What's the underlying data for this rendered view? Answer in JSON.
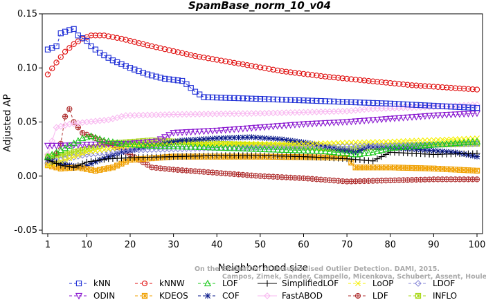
{
  "chart_data": {
    "type": "line",
    "title": "SpamBase_norm_10_v04",
    "xlabel": "Neighborhood size",
    "ylabel": "Adjusted AP",
    "xlim": [
      1,
      100
    ],
    "ylim": [
      -0.05,
      0.15
    ],
    "x_ticks": [
      1,
      10,
      20,
      30,
      40,
      50,
      60,
      70,
      80,
      90,
      100
    ],
    "y_ticks": [
      -0.05,
      0.0,
      0.05,
      0.1,
      0.15
    ],
    "x_tick_labels": [
      "1",
      "10",
      "20",
      "30",
      "40",
      "50",
      "60",
      "70",
      "80",
      "90",
      "100"
    ],
    "y_tick_labels": [
      "-0.05",
      "0.00",
      "0.05",
      "0.10",
      "0.15"
    ],
    "grid": false,
    "legend_position": "bottom",
    "watermark": [
      "Campos, Zimek, Sander, Campello, Micenkova, Schubert, Assent, Houle",
      "On the Evaluation of Unsupervised Outlier Detection. DAMI, 2015."
    ],
    "series": [
      {
        "name": "kNN",
        "color": "#1f2fd6",
        "marker": "square",
        "dash": "dash",
        "keypoints": [
          [
            1,
            0.117
          ],
          [
            3,
            0.12
          ],
          [
            4,
            0.132
          ],
          [
            6,
            0.135
          ],
          [
            7,
            0.136
          ],
          [
            8,
            0.13
          ],
          [
            10,
            0.125
          ],
          [
            11,
            0.12
          ],
          [
            13,
            0.114
          ],
          [
            16,
            0.107
          ],
          [
            20,
            0.1
          ],
          [
            24,
            0.094
          ],
          [
            28,
            0.09
          ],
          [
            32,
            0.088
          ],
          [
            33,
            0.085
          ],
          [
            35,
            0.078
          ],
          [
            37,
            0.073
          ],
          [
            45,
            0.072
          ],
          [
            60,
            0.07
          ],
          [
            80,
            0.067
          ],
          [
            100,
            0.063
          ]
        ]
      },
      {
        "name": "kNNW",
        "color": "#e01010",
        "marker": "circle",
        "dash": "dash",
        "keypoints": [
          [
            1,
            0.094
          ],
          [
            3,
            0.105
          ],
          [
            5,
            0.115
          ],
          [
            7,
            0.122
          ],
          [
            9,
            0.127
          ],
          [
            11,
            0.13
          ],
          [
            14,
            0.13
          ],
          [
            18,
            0.127
          ],
          [
            25,
            0.12
          ],
          [
            35,
            0.111
          ],
          [
            45,
            0.104
          ],
          [
            55,
            0.097
          ],
          [
            65,
            0.092
          ],
          [
            75,
            0.088
          ],
          [
            85,
            0.084
          ],
          [
            100,
            0.08
          ]
        ]
      },
      {
        "name": "LOF",
        "color": "#19c819",
        "marker": "triangle-up",
        "dash": "dash",
        "keypoints": [
          [
            1,
            0.018
          ],
          [
            3,
            0.022
          ],
          [
            6,
            0.028
          ],
          [
            9,
            0.035
          ],
          [
            11,
            0.037
          ],
          [
            14,
            0.033
          ],
          [
            18,
            0.03
          ],
          [
            25,
            0.028
          ],
          [
            35,
            0.027
          ],
          [
            50,
            0.025
          ],
          [
            65,
            0.023
          ],
          [
            72,
            0.02
          ],
          [
            76,
            0.022
          ],
          [
            80,
            0.026
          ],
          [
            100,
            0.032
          ]
        ]
      },
      {
        "name": "SimplifiedLOF",
        "color": "#000000",
        "marker": "plus",
        "dash": "solid",
        "keypoints": [
          [
            1,
            0.015
          ],
          [
            4,
            0.01
          ],
          [
            7,
            0.008
          ],
          [
            10,
            0.013
          ],
          [
            15,
            0.016
          ],
          [
            20,
            0.017
          ],
          [
            30,
            0.018
          ],
          [
            40,
            0.019
          ],
          [
            50,
            0.019
          ],
          [
            60,
            0.018
          ],
          [
            70,
            0.016
          ],
          [
            76,
            0.014
          ],
          [
            78,
            0.018
          ],
          [
            80,
            0.022
          ],
          [
            90,
            0.02
          ],
          [
            100,
            0.021
          ]
        ]
      },
      {
        "name": "LoOP",
        "color": "#f5f000",
        "marker": "x",
        "dash": "dash",
        "keypoints": [
          [
            1,
            0.01
          ],
          [
            5,
            0.015
          ],
          [
            10,
            0.022
          ],
          [
            20,
            0.028
          ],
          [
            40,
            0.03
          ],
          [
            60,
            0.03
          ],
          [
            80,
            0.032
          ],
          [
            100,
            0.035
          ]
        ]
      },
      {
        "name": "LDOF",
        "color": "#8a8ad8",
        "marker": "diamond",
        "dash": "dash",
        "keypoints": [
          [
            1,
            0.012
          ],
          [
            5,
            0.016
          ],
          [
            10,
            0.02
          ],
          [
            20,
            0.024
          ],
          [
            40,
            0.026
          ],
          [
            60,
            0.027
          ],
          [
            80,
            0.028
          ],
          [
            100,
            0.03
          ]
        ]
      },
      {
        "name": "ODIN",
        "color": "#8a18d0",
        "marker": "triangle-down",
        "dash": "dash",
        "keypoints": [
          [
            3,
            0.028
          ],
          [
            10,
            0.029
          ],
          [
            20,
            0.03
          ],
          [
            26,
            0.032
          ],
          [
            28,
            0.036
          ],
          [
            30,
            0.04
          ],
          [
            40,
            0.042
          ],
          [
            50,
            0.045
          ],
          [
            60,
            0.048
          ],
          [
            70,
            0.05
          ],
          [
            80,
            0.053
          ],
          [
            90,
            0.056
          ],
          [
            100,
            0.058
          ]
        ]
      },
      {
        "name": "KDEOS",
        "color": "#f0a000",
        "marker": "asterisk-box",
        "dash": "dash",
        "keypoints": [
          [
            1,
            0.01
          ],
          [
            4,
            0.007
          ],
          [
            8,
            0.008
          ],
          [
            12,
            0.005
          ],
          [
            16,
            0.008
          ],
          [
            20,
            0.015
          ],
          [
            30,
            0.018
          ],
          [
            50,
            0.018
          ],
          [
            70,
            0.017
          ],
          [
            72,
            0.008
          ],
          [
            80,
            0.008
          ],
          [
            90,
            0.007
          ],
          [
            100,
            0.005
          ]
        ]
      },
      {
        "name": "COF",
        "color": "#0a1a8a",
        "marker": "star",
        "dash": "dash",
        "keypoints": [
          [
            1,
            0.015
          ],
          [
            6,
            0.01
          ],
          [
            9,
            0.008
          ],
          [
            13,
            0.015
          ],
          [
            18,
            0.022
          ],
          [
            25,
            0.028
          ],
          [
            32,
            0.033
          ],
          [
            40,
            0.035
          ],
          [
            48,
            0.036
          ],
          [
            55,
            0.034
          ],
          [
            62,
            0.03
          ],
          [
            68,
            0.025
          ],
          [
            72,
            0.022
          ],
          [
            75,
            0.027
          ],
          [
            85,
            0.025
          ],
          [
            95,
            0.022
          ],
          [
            100,
            0.018
          ]
        ]
      },
      {
        "name": "FastABOD",
        "color": "#f8b8f0",
        "marker": "diamond",
        "dash": "solid",
        "keypoints": [
          [
            1,
            0.02
          ],
          [
            3,
            0.045
          ],
          [
            6,
            0.048
          ],
          [
            10,
            0.05
          ],
          [
            15,
            0.052
          ],
          [
            19,
            0.056
          ],
          [
            30,
            0.057
          ],
          [
            50,
            0.058
          ],
          [
            70,
            0.06
          ],
          [
            75,
            0.062
          ],
          [
            90,
            0.064
          ],
          [
            100,
            0.066
          ]
        ]
      },
      {
        "name": "LDF",
        "color": "#b03030",
        "marker": "circle-plus",
        "dash": "dash",
        "keypoints": [
          [
            2,
            0.012
          ],
          [
            4,
            0.03
          ],
          [
            5,
            0.055
          ],
          [
            6,
            0.062
          ],
          [
            7,
            0.05
          ],
          [
            9,
            0.04
          ],
          [
            12,
            0.035
          ],
          [
            15,
            0.03
          ],
          [
            18,
            0.025
          ],
          [
            22,
            0.015
          ],
          [
            25,
            0.008
          ],
          [
            30,
            0.006
          ],
          [
            40,
            0.003
          ],
          [
            50,
            0.0
          ],
          [
            60,
            -0.002
          ],
          [
            70,
            -0.005
          ],
          [
            80,
            -0.004
          ],
          [
            90,
            -0.003
          ],
          [
            100,
            -0.003
          ]
        ]
      },
      {
        "name": "INFLO",
        "color": "#a8d818",
        "marker": "asterisk-box",
        "dash": "dash",
        "keypoints": [
          [
            1,
            0.018
          ],
          [
            5,
            0.02
          ],
          [
            10,
            0.025
          ],
          [
            15,
            0.03
          ],
          [
            25,
            0.033
          ],
          [
            40,
            0.03
          ],
          [
            55,
            0.028
          ],
          [
            70,
            0.025
          ],
          [
            80,
            0.028
          ],
          [
            100,
            0.03
          ]
        ]
      }
    ]
  }
}
